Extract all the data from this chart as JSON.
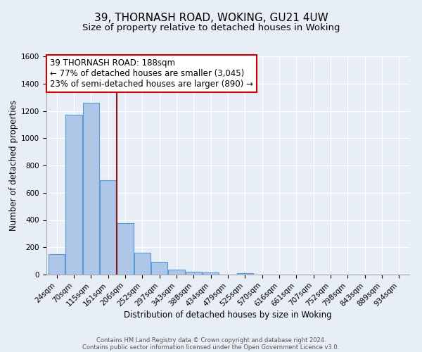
{
  "title": "39, THORNASH ROAD, WOKING, GU21 4UW",
  "subtitle": "Size of property relative to detached houses in Woking",
  "xlabel": "Distribution of detached houses by size in Woking",
  "ylabel": "Number of detached properties",
  "footer_line1": "Contains HM Land Registry data © Crown copyright and database right 2024.",
  "footer_line2": "Contains public sector information licensed under the Open Government Licence v3.0.",
  "bin_labels": [
    "24sqm",
    "70sqm",
    "115sqm",
    "161sqm",
    "206sqm",
    "252sqm",
    "297sqm",
    "343sqm",
    "388sqm",
    "434sqm",
    "479sqm",
    "525sqm",
    "570sqm",
    "616sqm",
    "661sqm",
    "707sqm",
    "752sqm",
    "798sqm",
    "843sqm",
    "889sqm",
    "934sqm"
  ],
  "bar_values": [
    148,
    1170,
    1260,
    690,
    375,
    162,
    91,
    37,
    22,
    15,
    0,
    10,
    0,
    0,
    0,
    0,
    0,
    0,
    0,
    0,
    0
  ],
  "bar_color": "#aec6e8",
  "bar_edge_color": "#5b9bd5",
  "vline_color": "#8b1a1a",
  "annotation_title": "39 THORNASH ROAD: 188sqm",
  "annotation_line1": "← 77% of detached houses are smaller (3,045)",
  "annotation_line2": "23% of semi-detached houses are larger (890) →",
  "annotation_box_color": "#ffffff",
  "annotation_box_edge": "#cc0000",
  "ylim": [
    0,
    1600
  ],
  "yticks": [
    0,
    200,
    400,
    600,
    800,
    1000,
    1200,
    1400,
    1600
  ],
  "background_color": "#e8eef5",
  "grid_color": "#ffffff",
  "title_fontsize": 11,
  "subtitle_fontsize": 9.5,
  "axis_label_fontsize": 8.5,
  "tick_fontsize": 7.5,
  "annotation_fontsize": 8.5,
  "footer_fontsize": 6
}
